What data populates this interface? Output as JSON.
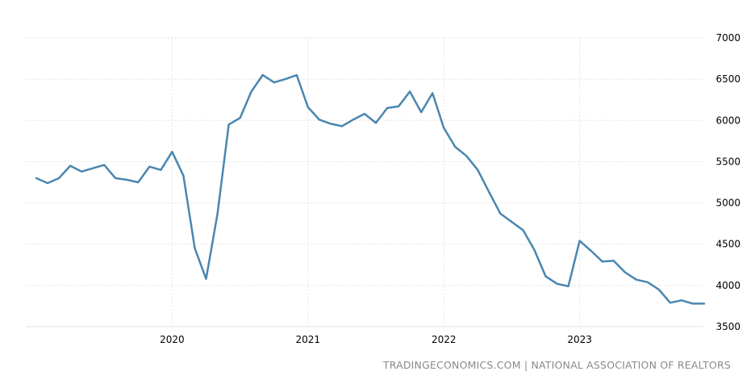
{
  "chart_data": {
    "type": "line",
    "title": "",
    "xlabel": "",
    "ylabel": "",
    "ylim": [
      3500,
      7000
    ],
    "y_ticks": [
      3500,
      4000,
      4500,
      5000,
      5500,
      6000,
      6500,
      7000
    ],
    "y_tick_labels": [
      "3500",
      "4000",
      "4500",
      "5000",
      "5500",
      "6000",
      "6500",
      "7000"
    ],
    "y_axis_side": "right",
    "x_tick_labels": [
      "2020",
      "2021",
      "2022",
      "2023"
    ],
    "x_tick_dates": [
      "2020-01",
      "2021-01",
      "2022-01",
      "2023-01"
    ],
    "x_range": [
      "2019-01",
      "2023-12"
    ],
    "grid": true,
    "line_color": "#4a86b0",
    "series": [
      {
        "x": [
          "2019-01",
          "2019-02",
          "2019-03",
          "2019-04",
          "2019-05",
          "2019-06",
          "2019-07",
          "2019-08",
          "2019-09",
          "2019-10",
          "2019-11",
          "2019-12",
          "2020-01",
          "2020-02",
          "2020-03",
          "2020-04",
          "2020-05",
          "2020-06",
          "2020-07",
          "2020-08",
          "2020-09",
          "2020-10",
          "2020-11",
          "2020-12",
          "2021-01",
          "2021-02",
          "2021-03",
          "2021-04",
          "2021-05",
          "2021-06",
          "2021-07",
          "2021-08",
          "2021-09",
          "2021-10",
          "2021-11",
          "2021-12",
          "2022-01",
          "2022-02",
          "2022-03",
          "2022-04",
          "2022-05",
          "2022-06",
          "2022-07",
          "2022-08",
          "2022-09",
          "2022-10",
          "2022-11",
          "2022-12",
          "2023-01",
          "2023-02",
          "2023-03",
          "2023-04",
          "2023-05",
          "2023-06",
          "2023-07",
          "2023-08",
          "2023-09",
          "2023-10",
          "2023-11",
          "2023-12"
        ],
        "values": [
          5300,
          5240,
          5300,
          5450,
          5380,
          5420,
          5460,
          5300,
          5280,
          5250,
          5440,
          5400,
          5620,
          5330,
          4450,
          4080,
          4860,
          5950,
          6030,
          6350,
          6550,
          6460,
          6500,
          6550,
          6160,
          6010,
          5960,
          5930,
          6010,
          6080,
          5970,
          6150,
          6170,
          6350,
          6100,
          6330,
          5910,
          5680,
          5570,
          5400,
          5130,
          4870,
          4770,
          4670,
          4430,
          4110,
          4020,
          3990,
          4540,
          4420,
          4290,
          4300,
          4160,
          4070,
          4040,
          3950,
          3790,
          3820,
          3780,
          3780
        ]
      }
    ]
  },
  "source_text": "TRADINGECONOMICS.COM | NATIONAL ASSOCIATION OF REALTORS"
}
